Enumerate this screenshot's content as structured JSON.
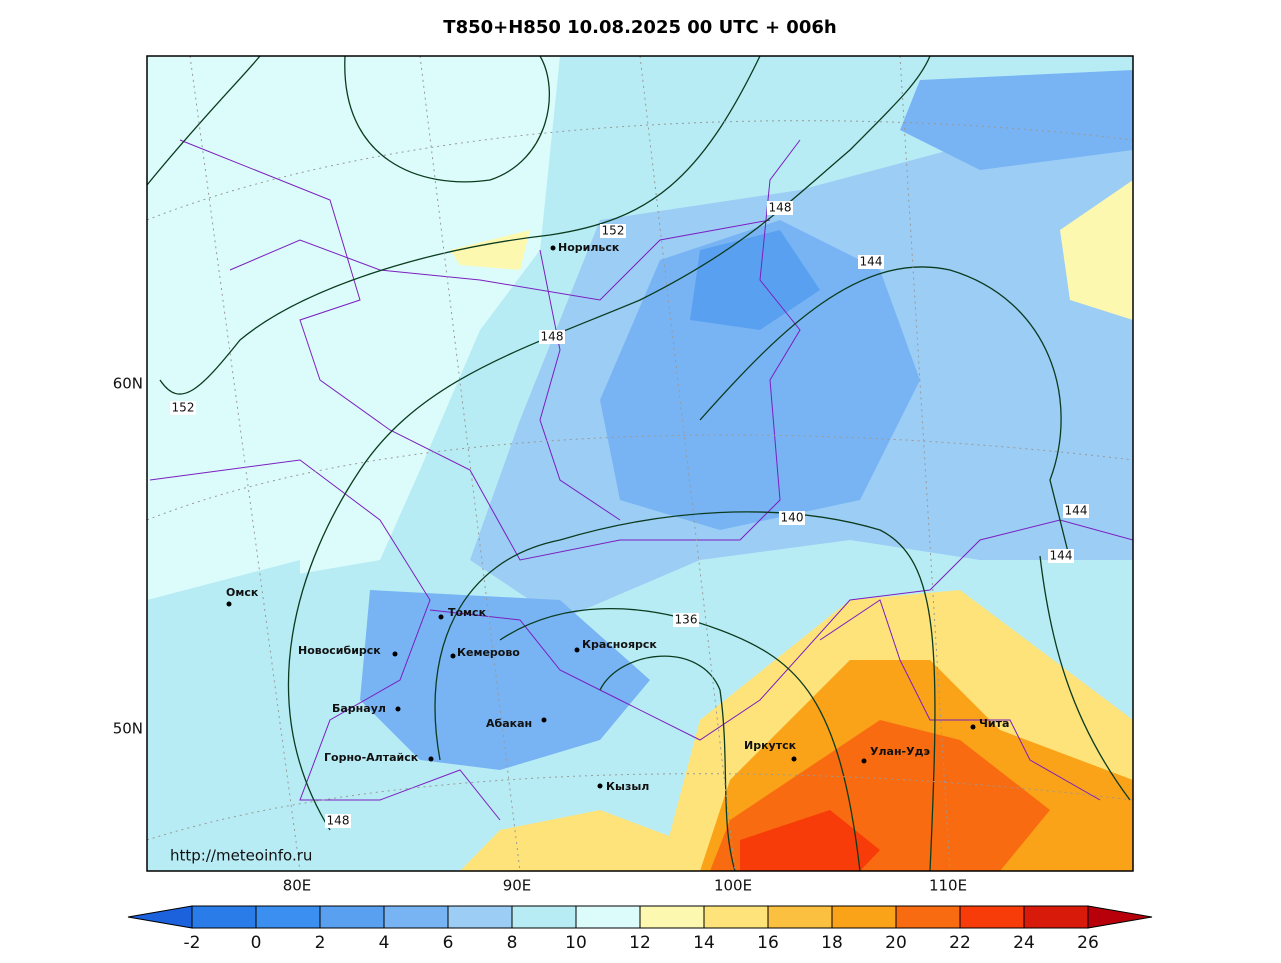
{
  "title": "T850+H850 10.08.2025 00 UTC + 006h",
  "map": {
    "credit": "http://meteoinfo.ru",
    "lat_labels": [
      "60N",
      "50N"
    ],
    "lon_labels": [
      "80E",
      "90E",
      "100E",
      "110E"
    ],
    "cities": [
      "Норильск",
      "Омск",
      "Томск",
      "Новосибирск",
      "Кемерово",
      "Красноярск",
      "Барнаул",
      "Абакан",
      "Горно-Алтайск",
      "Кызыл",
      "Иркутск",
      "Улан-Удэ",
      "Чита"
    ],
    "contour_labels": [
      152,
      148,
      144,
      148,
      152,
      140,
      144,
      144,
      136,
      148
    ]
  },
  "colorbar": {
    "ticks": [
      -2,
      0,
      2,
      4,
      6,
      8,
      10,
      12,
      14,
      16,
      18,
      20,
      22,
      24,
      26
    ],
    "colors": [
      "#1c62dc",
      "#2a7de8",
      "#3a8ff0",
      "#5aa0f0",
      "#78b4f3",
      "#9ccdf5",
      "#b8ecf5",
      "#dcfcfb",
      "#fdf8b0",
      "#fde37a",
      "#fcc040",
      "#fba318",
      "#f86b10",
      "#f73c0a",
      "#d81a0a",
      "#b8000a"
    ]
  }
}
